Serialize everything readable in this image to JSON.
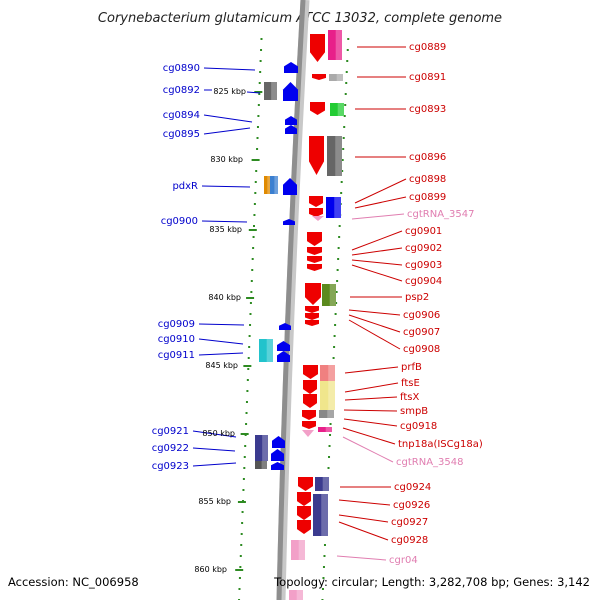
{
  "title": "Corynebacterium glutamicum ATCC 13032, complete genome",
  "footer": {
    "accession": "Accession: NC_006958",
    "topology": "Topology: circular; Length: 3,282,708 bp; Genes: 3,142"
  },
  "colors": {
    "backbone": "#909090",
    "left_label": "#0000cc",
    "right_label": "#cc0000",
    "rna_label": "#e07db0",
    "tick": "#2e8b22",
    "forward": "#0000ee",
    "reverse": "#ee0000"
  },
  "scale_ticks": [
    {
      "label": "825 kbp"
    },
    {
      "label": "830 kbp"
    },
    {
      "label": "835 kbp"
    },
    {
      "label": "840 kbp"
    },
    {
      "label": "845 kbp"
    },
    {
      "label": "850 kbp"
    },
    {
      "label": "855 kbp"
    },
    {
      "label": "860 kbp"
    }
  ],
  "left_labels": [
    {
      "text": "cg0890"
    },
    {
      "text": "cg0892"
    },
    {
      "text": "cg0894"
    },
    {
      "text": "cg0895"
    },
    {
      "text": "pdxR"
    },
    {
      "text": "cg0900"
    },
    {
      "text": "cg0909"
    },
    {
      "text": "cg0910"
    },
    {
      "text": "cg0911"
    },
    {
      "text": "cg0921"
    },
    {
      "text": "cg0922"
    },
    {
      "text": "cg0923"
    }
  ],
  "right_labels": [
    {
      "text": "cg0889",
      "kind": "gene"
    },
    {
      "text": "cg0891",
      "kind": "gene"
    },
    {
      "text": "cg0893",
      "kind": "gene"
    },
    {
      "text": "cg0896",
      "kind": "gene"
    },
    {
      "text": "cg0898",
      "kind": "gene"
    },
    {
      "text": "cg0899",
      "kind": "gene"
    },
    {
      "text": "cgtRNA_3547",
      "kind": "rna"
    },
    {
      "text": "cg0901",
      "kind": "gene"
    },
    {
      "text": "cg0902",
      "kind": "gene"
    },
    {
      "text": "cg0903",
      "kind": "gene"
    },
    {
      "text": "cg0904",
      "kind": "gene"
    },
    {
      "text": "psp2",
      "kind": "gene"
    },
    {
      "text": "cg0906",
      "kind": "gene"
    },
    {
      "text": "cg0907",
      "kind": "gene"
    },
    {
      "text": "cg0908",
      "kind": "gene"
    },
    {
      "text": "prfB",
      "kind": "gene"
    },
    {
      "text": "ftsE",
      "kind": "gene"
    },
    {
      "text": "ftsX",
      "kind": "gene"
    },
    {
      "text": "smpB",
      "kind": "gene"
    },
    {
      "text": "cg0918",
      "kind": "gene"
    },
    {
      "text": "tnp18a(ISCg18a)",
      "kind": "gene"
    },
    {
      "text": "cgtRNA_3548",
      "kind": "rna"
    },
    {
      "text": "cg0924",
      "kind": "gene"
    },
    {
      "text": "cg0926",
      "kind": "gene"
    },
    {
      "text": "cg0927",
      "kind": "gene"
    },
    {
      "text": "cg0928",
      "kind": "gene"
    },
    {
      "text": "cgr04",
      "kind": "rna"
    }
  ]
}
